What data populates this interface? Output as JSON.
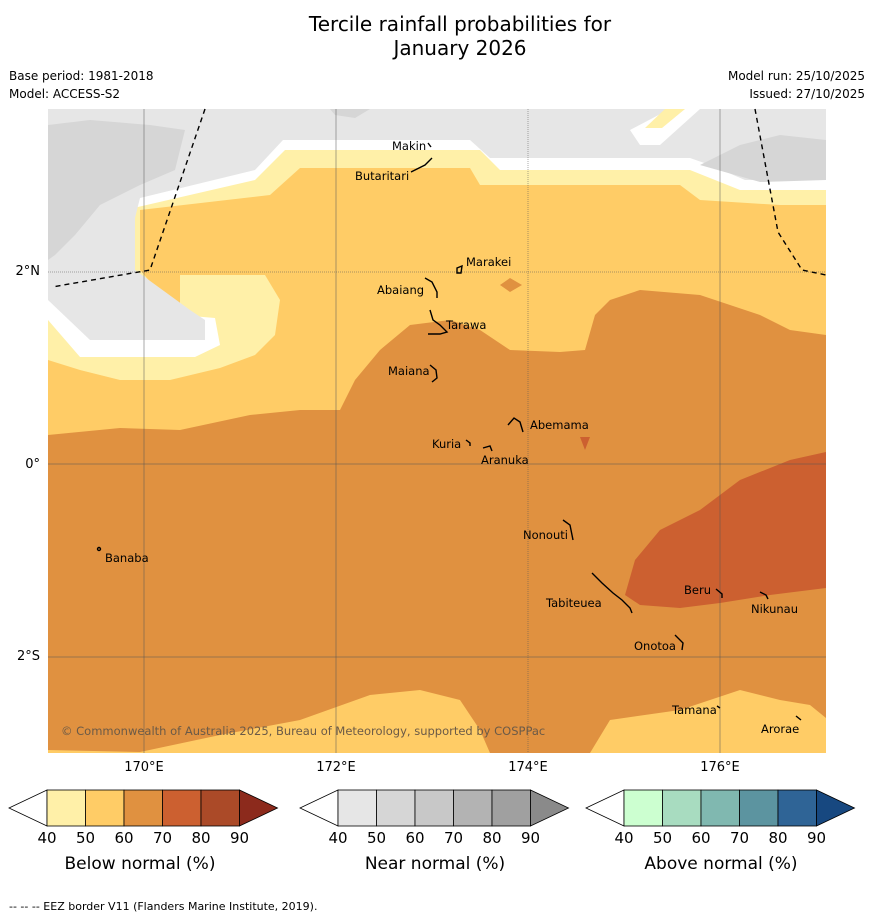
{
  "title_line1": "Tercile rainfall probabilities for",
  "title_line2": "January 2026",
  "base_period": "Base period: 1981-2018",
  "model": "Model: ACCESS-S2",
  "model_run": "Model run: 25/10/2025",
  "issued": "Issued: 27/10/2025",
  "map": {
    "lon_labels": [
      "170°E",
      "172°E",
      "174°E",
      "176°E"
    ],
    "lat_labels": [
      "2°N",
      "0°",
      "2°S"
    ],
    "places": [
      "Makin",
      "Butaritari",
      "Marakei",
      "Abaiang",
      "Tarawa",
      "Maiana",
      "Abemama",
      "Kuria",
      "Aranuka",
      "Nonouti",
      "Banaba",
      "Beru",
      "Tabiteuea",
      "Nikunau",
      "Onotoa",
      "Tamana",
      "Arorae"
    ],
    "copyright": "© Commonwealth of Australia 2025, Bureau of Meteorology, supported by COSPPac"
  },
  "colorbars": [
    {
      "title": "Below normal (%)",
      "ticks": [
        "40",
        "50",
        "60",
        "70",
        "80",
        "90"
      ],
      "colors": [
        "#ffffff",
        "#fff0a8",
        "#ffcc66",
        "#e09140",
        "#cc6030",
        "#ab4a28",
        "#8c2a1c"
      ]
    },
    {
      "title": "Near normal (%)",
      "ticks": [
        "40",
        "50",
        "60",
        "70",
        "80",
        "90"
      ],
      "colors": [
        "#ffffff",
        "#e6e6e6",
        "#d6d6d6",
        "#c8c8c8",
        "#b3b3b3",
        "#a0a0a0",
        "#8a8a8a"
      ]
    },
    {
      "title": "Above normal (%)",
      "ticks": [
        "40",
        "50",
        "60",
        "70",
        "80",
        "90"
      ],
      "colors": [
        "#ffffff",
        "#ccffd0",
        "#a8dcc0",
        "#80b8b0",
        "#5c94a0",
        "#2f6496",
        "#174880"
      ]
    }
  ],
  "footer": "--  --  -- EEZ border V11 (Flanders Marine Institute, 2019).",
  "colors": {
    "below_50": "#fff0a8",
    "below_60": "#ffcc66",
    "below_70": "#e09140",
    "below_80": "#cc6030",
    "near_50": "#e6e6e6",
    "near_60": "#d6d6d6"
  }
}
